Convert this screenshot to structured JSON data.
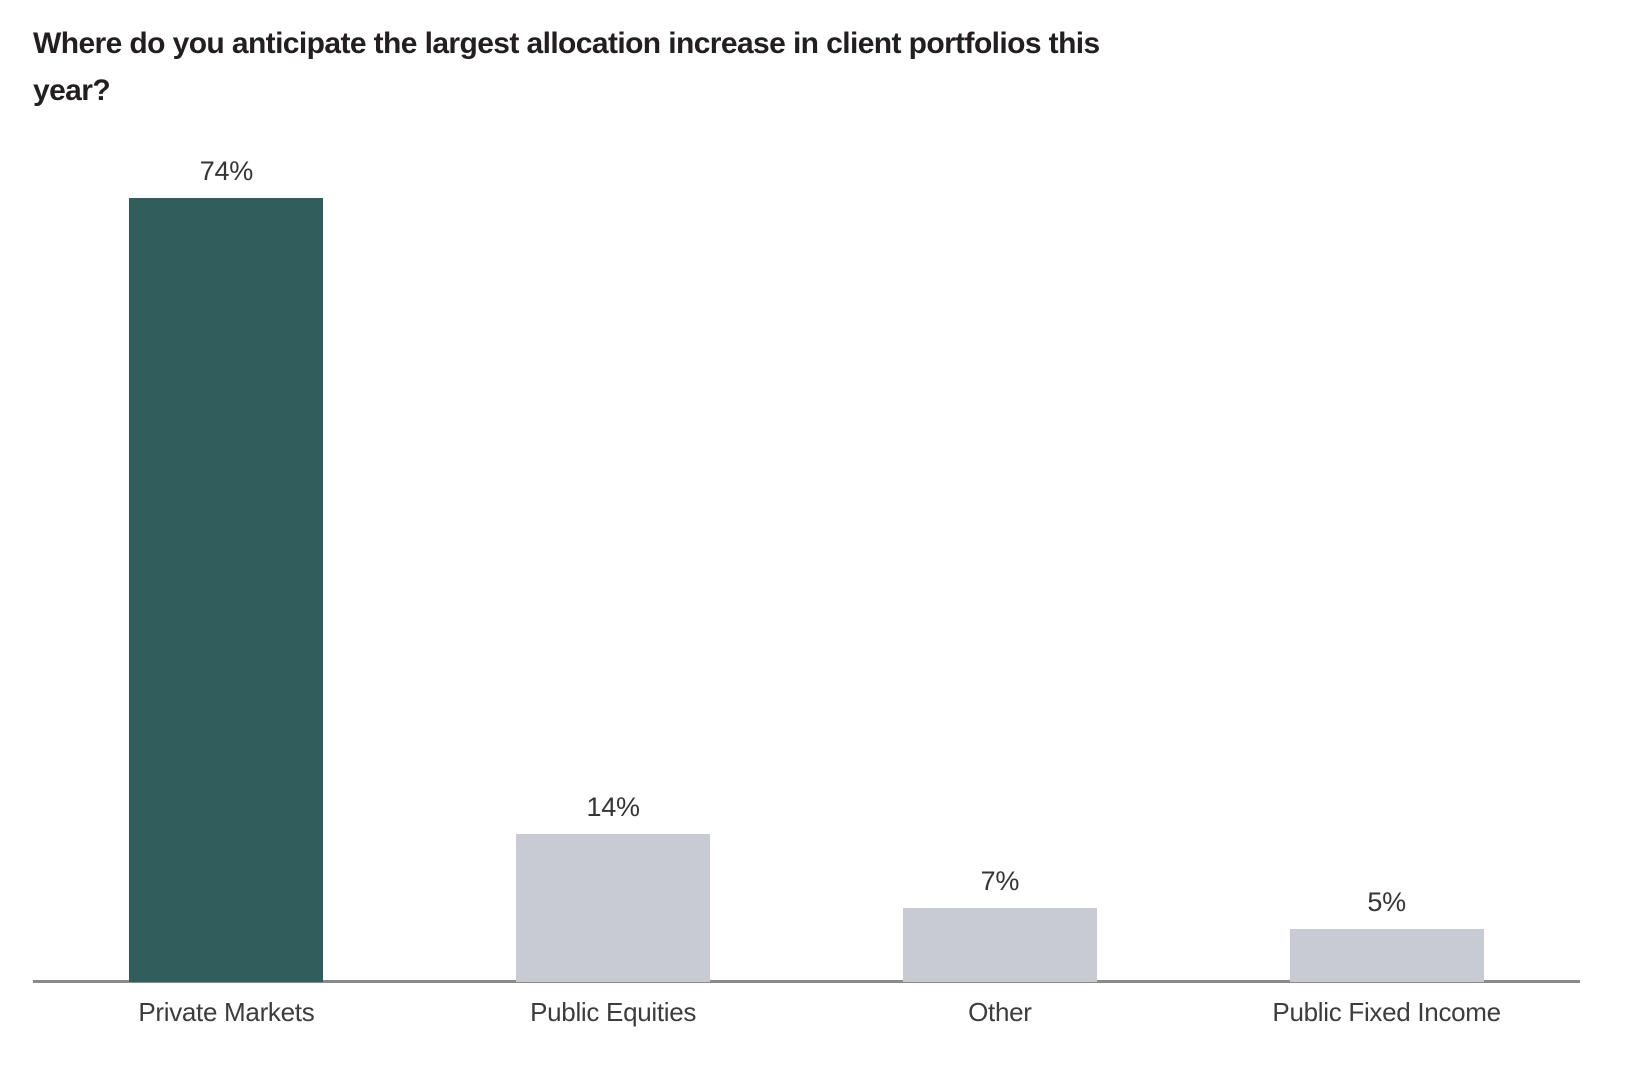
{
  "page": {
    "background": "#ffffff"
  },
  "chart_data": {
    "type": "bar",
    "title": "Where do you anticipate the largest allocation increase in client portfolios this year?",
    "title_lines": [
      "Where do you anticipate the largest allocation increase in client portfolios this",
      "year?"
    ],
    "categories": [
      "Private Markets",
      "Public Equities",
      "Other",
      "Public Fixed Income"
    ],
    "values": [
      74,
      14,
      7,
      5
    ],
    "value_labels": [
      "74%",
      "14%",
      "7%",
      "5%"
    ],
    "unit": "%",
    "colors": [
      "#315d5d",
      "#c9cbd3",
      "#c9cbd3",
      "#c9cbd3"
    ],
    "highlight_color": "#315d5d",
    "default_color": "#c9cbd3",
    "axis_color": "#8a8a8a",
    "title_color": "#231f20",
    "label_color": "#3d3d3d",
    "xlabel": "",
    "ylabel": "",
    "ylim": [
      0,
      80
    ],
    "grid": false,
    "legend": "none",
    "y_axis_visible": false
  }
}
